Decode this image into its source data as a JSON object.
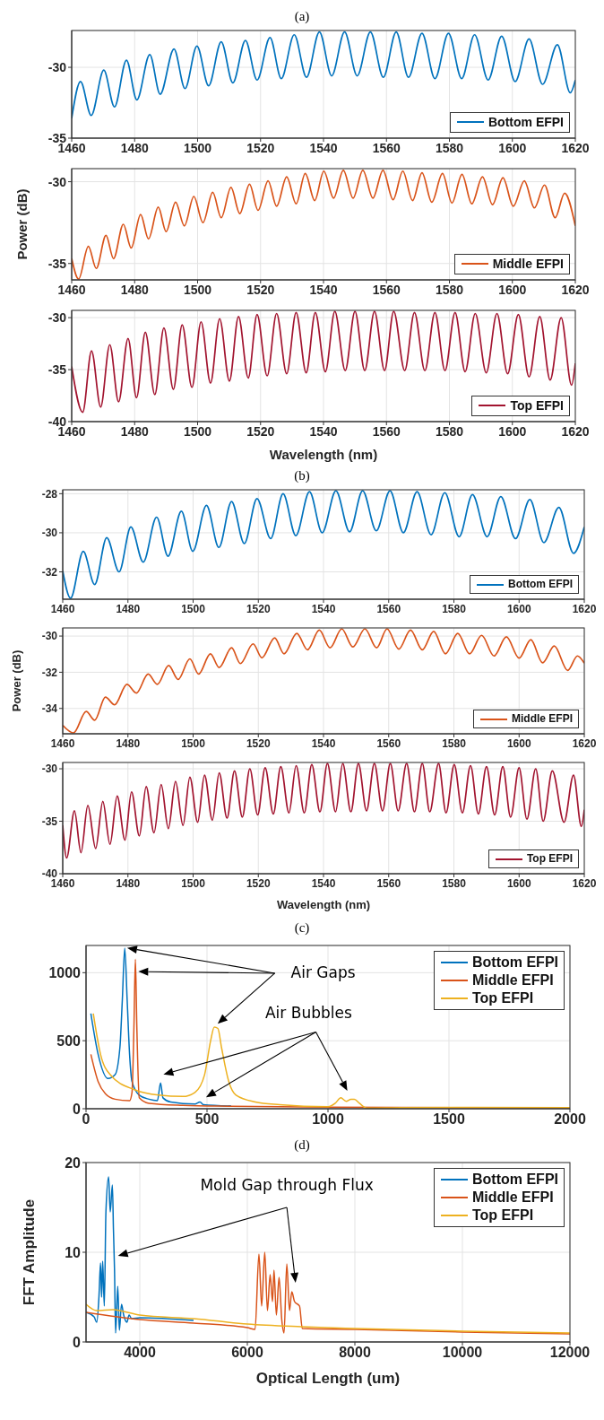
{
  "chart_data": [
    {
      "type": "line",
      "title": "(a)",
      "xlim": [
        1460,
        1620
      ],
      "xticks": [
        1460,
        1480,
        1500,
        1520,
        1540,
        1560,
        1580,
        1600,
        1620
      ],
      "ylim": [
        -35,
        -27.4
      ],
      "yticks": [
        -35,
        -30
      ],
      "grid": true,
      "legend": "bottom right",
      "series": [
        {
          "name": "Bottom EFPI",
          "color": "#0072bd",
          "x": [
            1460,
            1462.8,
            1466.2,
            1470.2,
            1473.6,
            1477.4,
            1480.7,
            1484.8,
            1488.1,
            1492.5,
            1496,
            1499.8,
            1503.5,
            1507.5,
            1511.2,
            1515.2,
            1518.9,
            1523,
            1526.6,
            1530.7,
            1534.6,
            1538.7,
            1542.6,
            1546.7,
            1550.7,
            1554.9,
            1559,
            1563.1,
            1567,
            1571.3,
            1575.4,
            1579.7,
            1583.9,
            1588,
            1592.3,
            1596.6,
            1600.9,
            1605.3,
            1609.6,
            1614.3,
            1618.4,
            1620
          ],
          "values": [
            -33.6,
            -31.0,
            -33.4,
            -30.2,
            -32.8,
            -29.5,
            -32.3,
            -29.1,
            -31.9,
            -28.7,
            -31.5,
            -28.5,
            -31.3,
            -28.2,
            -31.1,
            -28.1,
            -30.9,
            -27.9,
            -30.8,
            -27.7,
            -30.7,
            -27.5,
            -30.6,
            -27.5,
            -30.6,
            -27.5,
            -30.7,
            -27.5,
            -30.7,
            -27.6,
            -30.8,
            -27.6,
            -30.8,
            -27.7,
            -30.9,
            -27.8,
            -31.0,
            -28.0,
            -31.2,
            -28.4,
            -31.8,
            -30.9
          ]
        }
      ]
    },
    {
      "type": "line",
      "ylabel": "Power (dB)",
      "xlim": [
        1460,
        1620
      ],
      "xticks": [
        1460,
        1480,
        1500,
        1520,
        1540,
        1560,
        1580,
        1600,
        1620
      ],
      "ylim": [
        -36,
        -29.2
      ],
      "yticks": [
        -35,
        -30
      ],
      "grid": true,
      "legend": "bottom right",
      "series": [
        {
          "name": "Middle EFPI",
          "color": "#d95319",
          "x": [
            1460,
            1462.2,
            1465.3,
            1467.8,
            1470.9,
            1473.3,
            1476.4,
            1478.9,
            1481.9,
            1484.4,
            1487.5,
            1490.0,
            1493.0,
            1495.8,
            1498.8,
            1501.7,
            1504.8,
            1507.5,
            1510.6,
            1513.4,
            1516.5,
            1519.2,
            1522.4,
            1525.1,
            1528.3,
            1531.3,
            1534.2,
            1537.2,
            1540.1,
            1543.2,
            1546.3,
            1549.4,
            1552.5,
            1555.7,
            1558.9,
            1562.1,
            1565.2,
            1568.3,
            1571.3,
            1574.4,
            1577.8,
            1580.8,
            1584.0,
            1587.1,
            1590.5,
            1593.7,
            1597.0,
            1600.3,
            1603.8,
            1607.0,
            1610.2,
            1613.6,
            1616.6,
            1620
          ],
          "values": [
            -34.7,
            -35.95,
            -33.95,
            -35.3,
            -33.28,
            -34.7,
            -32.6,
            -34.05,
            -32.0,
            -33.5,
            -31.55,
            -33.05,
            -31.25,
            -32.7,
            -30.9,
            -32.5,
            -30.65,
            -32.2,
            -30.35,
            -31.95,
            -30.15,
            -31.75,
            -29.95,
            -31.5,
            -29.7,
            -31.35,
            -29.5,
            -31.15,
            -29.35,
            -31.0,
            -29.3,
            -31.0,
            -29.3,
            -31.0,
            -29.3,
            -31.1,
            -29.35,
            -31.15,
            -29.45,
            -31.25,
            -29.5,
            -31.3,
            -29.55,
            -31.35,
            -29.7,
            -31.4,
            -29.75,
            -31.5,
            -29.95,
            -31.6,
            -30.2,
            -32.2,
            -30.7,
            -32.7
          ]
        }
      ]
    },
    {
      "type": "line",
      "xlabel": "Wavelength (nm)",
      "xlim": [
        1460,
        1620
      ],
      "xticks": [
        1460,
        1480,
        1500,
        1520,
        1540,
        1560,
        1580,
        1600,
        1620
      ],
      "ylim": [
        -40,
        -29.3
      ],
      "yticks": [
        -40,
        -35,
        -30
      ],
      "grid": true,
      "legend": "bottom right",
      "series": [
        {
          "name": "Top EFPI",
          "color": "#a2142f",
          "x": [
            1460,
            1463.5,
            1466.3,
            1469.2,
            1472.1,
            1474.9,
            1477.9,
            1480.6,
            1483.4,
            1486.4,
            1489.3,
            1492.3,
            1495.1,
            1498.2,
            1501.1,
            1504.1,
            1507.0,
            1510.1,
            1513.0,
            1516.1,
            1518.9,
            1522.1,
            1525.1,
            1528.3,
            1531.3,
            1534.5,
            1537.4,
            1540.6,
            1543.6,
            1546.9,
            1550.0,
            1553.1,
            1556.2,
            1559.4,
            1562.3,
            1565.8,
            1568.9,
            1572.2,
            1575.4,
            1578.6,
            1581.8,
            1585.0,
            1588.2,
            1591.7,
            1595.1,
            1598.5,
            1601.9,
            1605.3,
            1608.7,
            1612.0,
            1615.5,
            1618.8,
            1620
          ],
          "values": [
            -34.7,
            -39.1,
            -33.2,
            -38.6,
            -32.6,
            -38.1,
            -32.0,
            -37.7,
            -31.4,
            -37.4,
            -31.0,
            -36.9,
            -30.7,
            -36.7,
            -30.4,
            -36.3,
            -30.1,
            -36.1,
            -29.9,
            -35.8,
            -29.7,
            -35.6,
            -29.6,
            -35.4,
            -29.5,
            -35.3,
            -29.5,
            -35.2,
            -29.4,
            -35.1,
            -29.4,
            -35.1,
            -29.4,
            -35.1,
            -29.4,
            -35.1,
            -29.5,
            -35.1,
            -29.5,
            -35.1,
            -29.5,
            -35.2,
            -29.6,
            -35.3,
            -29.6,
            -35.4,
            -29.7,
            -35.7,
            -29.9,
            -36.0,
            -30.0,
            -36.5,
            -34.4
          ]
        }
      ]
    },
    {
      "type": "line",
      "title": "(b)",
      "xlim": [
        1460,
        1620
      ],
      "xticks": [
        1460,
        1480,
        1500,
        1520,
        1540,
        1560,
        1580,
        1600,
        1620
      ],
      "ylim": [
        -33.4,
        -27.8
      ],
      "yticks": [
        -32,
        -30,
        -28
      ],
      "grid": true,
      "legend": "bottom right",
      "series": [
        {
          "name": "Bottom EFPI",
          "color": "#0072bd",
          "x": [
            1460,
            1462.4,
            1466.3,
            1469.8,
            1473.5,
            1477.3,
            1480.9,
            1484.7,
            1488.8,
            1492.3,
            1496.4,
            1499.9,
            1504.1,
            1507.9,
            1511.8,
            1515.7,
            1519.6,
            1523.8,
            1527.6,
            1531.5,
            1535.7,
            1539.6,
            1543.8,
            1548.0,
            1552.0,
            1556.2,
            1560.4,
            1564.5,
            1568.7,
            1573.0,
            1577.2,
            1581.6,
            1585.7,
            1590.2,
            1594.4,
            1598.9,
            1603.3,
            1607.6,
            1612.2,
            1616.7,
            1620
          ],
          "values": [
            -31.95,
            -33.35,
            -30.95,
            -32.65,
            -30.25,
            -32.0,
            -29.7,
            -31.5,
            -29.2,
            -31.2,
            -28.9,
            -30.95,
            -28.6,
            -30.75,
            -28.4,
            -30.55,
            -28.25,
            -30.3,
            -28.0,
            -30.15,
            -27.9,
            -30.0,
            -27.85,
            -29.95,
            -27.85,
            -29.9,
            -27.85,
            -30.0,
            -27.9,
            -30.1,
            -27.95,
            -30.2,
            -28.05,
            -30.2,
            -28.15,
            -30.3,
            -28.3,
            -30.5,
            -28.7,
            -31.05,
            -29.7
          ]
        }
      ]
    },
    {
      "type": "line",
      "ylabel": "Power (dB)",
      "xlim": [
        1460,
        1620
      ],
      "xticks": [
        1460,
        1480,
        1500,
        1520,
        1540,
        1560,
        1580,
        1600,
        1620
      ],
      "ylim": [
        -35.4,
        -29.55
      ],
      "yticks": [
        -34,
        -32,
        -30
      ],
      "grid": true,
      "legend": "bottom right",
      "series": [
        {
          "name": "Middle EFPI",
          "color": "#d95319",
          "x": [
            1460,
            1463.3,
            1467.2,
            1469.8,
            1473.1,
            1475.9,
            1479.7,
            1482.6,
            1486.2,
            1489.0,
            1492.5,
            1495.4,
            1499.0,
            1501.7,
            1505.3,
            1508.0,
            1511.8,
            1514.5,
            1518.4,
            1521.1,
            1525.0,
            1527.9,
            1531.8,
            1535.1,
            1538.7,
            1542.0,
            1545.6,
            1549.0,
            1552.7,
            1556.3,
            1559.5,
            1563.1,
            1566.7,
            1570.3,
            1573.8,
            1577.4,
            1581.2,
            1584.8,
            1588.5,
            1592.3,
            1596.1,
            1600.0,
            1603.6,
            1607.2,
            1610.8,
            1614.9,
            1617.9,
            1620
          ],
          "values": [
            -34.93,
            -35.35,
            -34.17,
            -34.65,
            -33.37,
            -33.8,
            -32.67,
            -33.15,
            -32.1,
            -32.67,
            -31.63,
            -32.4,
            -31.26,
            -32.1,
            -30.98,
            -31.74,
            -30.65,
            -31.52,
            -30.43,
            -31.2,
            -30.1,
            -30.98,
            -29.85,
            -30.76,
            -29.67,
            -30.65,
            -29.6,
            -30.6,
            -29.6,
            -30.65,
            -29.6,
            -30.72,
            -29.67,
            -30.76,
            -29.74,
            -30.98,
            -29.85,
            -30.98,
            -29.96,
            -31.1,
            -30.04,
            -31.22,
            -30.2,
            -31.48,
            -30.55,
            -31.9,
            -31.1,
            -31.5
          ]
        }
      ]
    },
    {
      "type": "line",
      "xlabel": "Wavelength (nm)",
      "xlim": [
        1460,
        1620
      ],
      "xticks": [
        1460,
        1480,
        1500,
        1520,
        1540,
        1560,
        1580,
        1600,
        1620
      ],
      "ylim": [
        -40,
        -29.4
      ],
      "yticks": [
        -40,
        -35,
        -30
      ],
      "grid": true,
      "legend": "bottom right",
      "series": [
        {
          "name": "Top EFPI",
          "color": "#a2142f",
          "x": [
            1460,
            1461.2,
            1463.6,
            1465.6,
            1467.7,
            1470.1,
            1472.3,
            1474.5,
            1476.7,
            1479.1,
            1481.1,
            1483.5,
            1485.6,
            1488.0,
            1490.2,
            1492.4,
            1494.6,
            1496.9,
            1499.0,
            1501.4,
            1503.5,
            1505.9,
            1508.0,
            1510.4,
            1512.7,
            1515.1,
            1517.4,
            1519.8,
            1522.1,
            1524.6,
            1526.9,
            1529.4,
            1531.6,
            1534.1,
            1536.4,
            1538.9,
            1541.2,
            1543.7,
            1545.9,
            1548.4,
            1550.7,
            1553.2,
            1555.6,
            1558.1,
            1560.5,
            1562.9,
            1565.5,
            1567.9,
            1570.3,
            1572.6,
            1575.3,
            1577.6,
            1580.1,
            1582.6,
            1585.1,
            1587.5,
            1590.0,
            1592.5,
            1595.0,
            1597.4,
            1600.0,
            1602.4,
            1605.1,
            1607.4,
            1610.2,
            1613.8,
            1616.7,
            1619.1,
            1620
          ],
          "values": [
            -35.4,
            -38.5,
            -34.0,
            -38.0,
            -33.5,
            -37.6,
            -33.1,
            -37.2,
            -32.6,
            -36.8,
            -32.2,
            -36.4,
            -31.7,
            -36.1,
            -31.5,
            -35.7,
            -31.2,
            -35.4,
            -30.8,
            -35.1,
            -30.6,
            -34.9,
            -30.4,
            -34.7,
            -30.2,
            -34.6,
            -30.0,
            -34.4,
            -29.9,
            -34.3,
            -29.8,
            -34.2,
            -29.7,
            -34.2,
            -29.6,
            -34.1,
            -29.5,
            -34.1,
            -29.5,
            -34.1,
            -29.5,
            -34.0,
            -29.5,
            -34.0,
            -29.5,
            -34.0,
            -29.5,
            -34.1,
            -29.5,
            -34.1,
            -29.5,
            -34.2,
            -29.6,
            -34.2,
            -29.7,
            -34.3,
            -29.8,
            -34.4,
            -29.8,
            -34.6,
            -29.9,
            -34.8,
            -30.0,
            -35.0,
            -30.2,
            -35.1,
            -30.6,
            -35.5,
            -33.9
          ]
        }
      ]
    },
    {
      "type": "line",
      "title": "(c)",
      "xlim": [
        0,
        2000
      ],
      "xticks": [
        0,
        500,
        1000,
        1500,
        2000
      ],
      "ylim": [
        0,
        1200
      ],
      "yticks": [
        0,
        500,
        1000
      ],
      "grid": true,
      "legend": "top right",
      "annotations": [
        "Air Gaps",
        "Air Bubbles"
      ],
      "series": [
        {
          "name": "Bottom EFPI",
          "color": "#0072bd",
          "x": [
            20,
            50,
            91,
            120,
            140,
            150,
            160,
            170,
            180,
            190,
            220,
            260,
            295,
            308,
            318,
            350,
            450,
            471,
            485,
            600
          ],
          "values": [
            700,
            400,
            222,
            250,
            450,
            800,
            1180,
            800,
            400,
            200,
            100,
            70,
            60,
            190,
            80,
            50,
            35,
            50,
            30,
            20
          ]
        },
        {
          "name": "Middle EFPI",
          "color": "#d95319",
          "x": [
            20,
            50,
            80,
            120,
            180,
            190,
            198,
            204,
            210,
            220,
            260,
            400,
            600,
            1000,
            2000
          ],
          "values": [
            400,
            200,
            110,
            70,
            60,
            120,
            600,
            1100,
            600,
            80,
            40,
            25,
            18,
            12,
            6
          ]
        },
        {
          "name": "Top EFPI",
          "color": "#edb120",
          "x": [
            30,
            60,
            100,
            200,
            300,
            400,
            450,
            490,
            515,
            530,
            545,
            560,
            590,
            620,
            700,
            800,
            1000,
            1030,
            1053,
            1075,
            1095,
            1109,
            1130,
            1160,
            1300,
            1600,
            2000
          ],
          "values": [
            700,
            400,
            250,
            140,
            100,
            90,
            120,
            250,
            500,
            600,
            590,
            450,
            200,
            100,
            50,
            30,
            15,
            40,
            80,
            55,
            70,
            70,
            40,
            5,
            8,
            10,
            8
          ]
        }
      ]
    },
    {
      "type": "line",
      "title": "(d)",
      "xlabel": "Optical Length (um)",
      "ylabel": "FFT Amplitude",
      "xlim": [
        3000,
        12000
      ],
      "xticks": [
        4000,
        6000,
        8000,
        10000,
        12000
      ],
      "ylim": [
        0,
        20
      ],
      "yticks": [
        0,
        10,
        20
      ],
      "grid": true,
      "legend": "top right",
      "annotations": [
        "Mold Gap through Flux"
      ],
      "series": [
        {
          "name": "Bottom EFPI",
          "color": "#0072bd",
          "x": [
            3000,
            3150,
            3200,
            3240,
            3270,
            3290,
            3310,
            3340,
            3370,
            3420,
            3450,
            3490,
            3510,
            3530,
            3550,
            3590,
            3620,
            3660,
            3700,
            3760,
            3800,
            3850,
            4000,
            5000
          ],
          "values": [
            3.3,
            2.8,
            2.2,
            5,
            8.8,
            5,
            9,
            4,
            14.5,
            18.4,
            14.5,
            17.5,
            12.5,
            8,
            1,
            6.2,
            1.3,
            4.2,
            3,
            2.2,
            3,
            2.6,
            2.7,
            2.4
          ]
        },
        {
          "name": "Middle EFPI",
          "color": "#d95319",
          "x": [
            3000,
            4000,
            5000,
            6000,
            6144,
            6216,
            6266,
            6324,
            6374,
            6424,
            6468,
            6496,
            6540,
            6590,
            6640,
            6683,
            6734,
            6784,
            6827,
            6878,
            6971,
            7022,
            8000,
            10000,
            12000
          ],
          "values": [
            3.3,
            2.5,
            2.1,
            1.6,
            1.4,
            9.8,
            4,
            10,
            3.5,
            7.5,
            4.5,
            8,
            3,
            7.2,
            2.5,
            1,
            8.7,
            3.5,
            5.6,
            4.5,
            4,
            1.5,
            1.4,
            1.1,
            0.9
          ]
        },
        {
          "name": "Top EFPI",
          "color": "#edb120",
          "x": [
            3000,
            3200,
            3500,
            3700,
            4000,
            5000,
            6000,
            7000,
            8000,
            10000,
            12000
          ],
          "values": [
            4.2,
            3.5,
            3.6,
            3.4,
            3.0,
            2.6,
            2.0,
            1.7,
            1.5,
            1.2,
            1.0
          ]
        }
      ]
    }
  ]
}
